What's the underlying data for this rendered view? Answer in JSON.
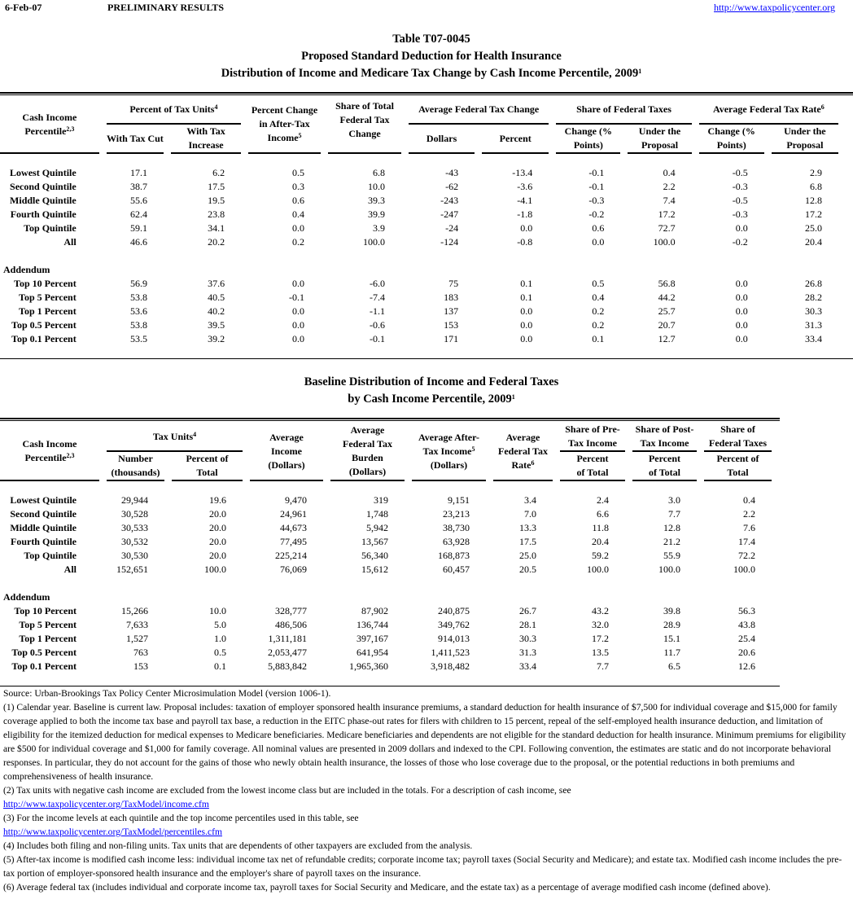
{
  "header": {
    "date": "6-Feb-07",
    "status": "PRELIMINARY RESULTS",
    "url": "http://www.taxpolicycenter.org"
  },
  "title": {
    "line1": "Table T07-0045",
    "line2": "Proposed Standard Deduction for Health Insurance",
    "line3": "Distribution of Income and Medicare Tax Change by Cash Income Percentile, 2009",
    "line3_sup": "1"
  },
  "table1": {
    "headers": {
      "label": "Cash Income Percentile",
      "label_sup": "2,3",
      "tax_units": "Percent of Tax Units",
      "tax_units_sup": "4",
      "with_cut": "With Tax Cut",
      "with_increase": "With Tax Increase",
      "pct_change": "Percent Change in After-Tax Income",
      "pct_change_sup": "5",
      "share_change": "Share of Total Federal Tax Change",
      "avg_change": "Average Federal Tax Change",
      "dollars": "Dollars",
      "percent": "Percent",
      "share_taxes": "Share of Federal Taxes",
      "change_pts": "Change (% Points)",
      "under_proposal": "Under the Proposal",
      "avg_rate": "Average Federal Tax Rate",
      "avg_rate_sup": "6",
      "change_pts2": "Change (% Points)",
      "under_proposal2": "Under the Proposal"
    },
    "rows": [
      [
        "Lowest Quintile",
        "17.1",
        "6.2",
        "0.5",
        "6.8",
        "-43",
        "-13.4",
        "-0.1",
        "0.4",
        "-0.5",
        "2.9"
      ],
      [
        "Second Quintile",
        "38.7",
        "17.5",
        "0.3",
        "10.0",
        "-62",
        "-3.6",
        "-0.1",
        "2.2",
        "-0.3",
        "6.8"
      ],
      [
        "Middle Quintile",
        "55.6",
        "19.5",
        "0.6",
        "39.3",
        "-243",
        "-4.1",
        "-0.3",
        "7.4",
        "-0.5",
        "12.8"
      ],
      [
        "Fourth Quintile",
        "62.4",
        "23.8",
        "0.4",
        "39.9",
        "-247",
        "-1.8",
        "-0.2",
        "17.2",
        "-0.3",
        "17.2"
      ],
      [
        "Top Quintile",
        "59.1",
        "34.1",
        "0.0",
        "3.9",
        "-24",
        "0.0",
        "0.6",
        "72.7",
        "0.0",
        "25.0"
      ],
      [
        "All",
        "46.6",
        "20.2",
        "0.2",
        "100.0",
        "-124",
        "-0.8",
        "0.0",
        "100.0",
        "-0.2",
        "20.4"
      ]
    ],
    "addendum_label": "Addendum",
    "addendum": [
      [
        "Top 10 Percent",
        "56.9",
        "37.6",
        "0.0",
        "-6.0",
        "75",
        "0.1",
        "0.5",
        "56.8",
        "0.0",
        "26.8"
      ],
      [
        "Top 5 Percent",
        "53.8",
        "40.5",
        "-0.1",
        "-7.4",
        "183",
        "0.1",
        "0.4",
        "44.2",
        "0.0",
        "28.2"
      ],
      [
        "Top 1 Percent",
        "53.6",
        "40.2",
        "0.0",
        "-1.1",
        "137",
        "0.0",
        "0.2",
        "25.7",
        "0.0",
        "30.3"
      ],
      [
        "Top 0.5 Percent",
        "53.8",
        "39.5",
        "0.0",
        "-0.6",
        "153",
        "0.0",
        "0.2",
        "20.7",
        "0.0",
        "31.3"
      ],
      [
        "Top 0.1 Percent",
        "53.5",
        "39.2",
        "0.0",
        "-0.1",
        "171",
        "0.0",
        "0.1",
        "12.7",
        "0.0",
        "33.4"
      ]
    ]
  },
  "title2": {
    "line1": "Baseline Distribution of Income and Federal Taxes",
    "line2": "by Cash Income Percentile, 2009",
    "line2_sup": "1"
  },
  "table2": {
    "headers": {
      "label": "Cash Income Percentile",
      "label_sup": "2,3",
      "tax_units": "Tax Units",
      "tax_units_sup": "4",
      "number": "Number (thousands)",
      "pct_total": "Percent of Total",
      "avg_income": "Average Income (Dollars)",
      "burden": "Average Federal Tax Burden (Dollars)",
      "after_tax": "Average After-Tax Income",
      "after_tax_sup": "5",
      "after_tax_unit": "(Dollars)",
      "rate": "Average Federal Tax Rate",
      "rate_sup": "6",
      "share_pre": "Share of Pre-Tax Income",
      "share_post": "Share of Post-Tax Income",
      "share_fed": "Share of Federal Taxes",
      "pct_of_total": "Percent of Total"
    },
    "rows": [
      [
        "Lowest Quintile",
        "29,944",
        "19.6",
        "9,470",
        "319",
        "9,151",
        "3.4",
        "2.4",
        "3.0",
        "0.4"
      ],
      [
        "Second Quintile",
        "30,528",
        "20.0",
        "24,961",
        "1,748",
        "23,213",
        "7.0",
        "6.6",
        "7.7",
        "2.2"
      ],
      [
        "Middle Quintile",
        "30,533",
        "20.0",
        "44,673",
        "5,942",
        "38,730",
        "13.3",
        "11.8",
        "12.8",
        "7.6"
      ],
      [
        "Fourth Quintile",
        "30,532",
        "20.0",
        "77,495",
        "13,567",
        "63,928",
        "17.5",
        "20.4",
        "21.2",
        "17.4"
      ],
      [
        "Top Quintile",
        "30,530",
        "20.0",
        "225,214",
        "56,340",
        "168,873",
        "25.0",
        "59.2",
        "55.9",
        "72.2"
      ],
      [
        "All",
        "152,651",
        "100.0",
        "76,069",
        "15,612",
        "60,457",
        "20.5",
        "100.0",
        "100.0",
        "100.0"
      ]
    ],
    "addendum_label": "Addendum",
    "addendum": [
      [
        "Top 10 Percent",
        "15,266",
        "10.0",
        "328,777",
        "87,902",
        "240,875",
        "26.7",
        "43.2",
        "39.8",
        "56.3"
      ],
      [
        "Top 5 Percent",
        "7,633",
        "5.0",
        "486,506",
        "136,744",
        "349,762",
        "28.1",
        "32.0",
        "28.9",
        "43.8"
      ],
      [
        "Top 1 Percent",
        "1,527",
        "1.0",
        "1,311,181",
        "397,167",
        "914,013",
        "30.3",
        "17.2",
        "15.1",
        "25.4"
      ],
      [
        "Top 0.5 Percent",
        "763",
        "0.5",
        "2,053,477",
        "641,954",
        "1,411,523",
        "31.3",
        "13.5",
        "11.7",
        "20.6"
      ],
      [
        "Top 0.1 Percent",
        "153",
        "0.1",
        "5,883,842",
        "1,965,360",
        "3,918,482",
        "33.4",
        "7.7",
        "6.5",
        "12.6"
      ]
    ]
  },
  "notes": {
    "source": "Source: Urban-Brookings Tax Policy Center Microsimulation Model (version 1006-1).",
    "n1": "(1) Calendar year. Baseline is current law. Proposal includes: taxation of employer sponsored health insurance premiums, a standard deduction for health insurance of $7,500 for individual coverage and $15,000 for family coverage applied to both the income tax base and payroll tax base, a reduction in the EITC phase-out rates for filers with children to 15 percent, repeal of the self-employed health insurance deduction, and limitation of eligibility for the itemized deduction for medical expenses to Medicare beneficiaries. Medicare beneficiaries and dependents are not eligible for the  standard deduction for health insurance. Minimum premiums for eligibility are $500 for individual coverage and $1,000 for family coverage. All nominal values are presented in 2009 dollars and indexed to the CPI. Following convention, the estimates are static and do not incorporate behavioral responses. In particular, they do not account for the gains of those who newly obtain health insurance, the losses of those who lose coverage due to the proposal, or the potential reductions in both premiums and comprehensiveness of health insurance.",
    "n2": "(2) Tax units with negative cash income are excluded from the lowest income class but are included in the totals. For a description of cash income, see",
    "n2_link": "http://www.taxpolicycenter.org/TaxModel/income.cfm",
    "n3": "(3) For the income levels at each quintile and the top income percentiles used in this table, see",
    "n3_link": "http://www.taxpolicycenter.org/TaxModel/percentiles.cfm",
    "n4": "(4) Includes both filing and non-filing units.  Tax units that are dependents of other taxpayers are excluded from the analysis.",
    "n5": "(5) After-tax income is modified cash income less: individual income tax net of refundable credits; corporate income tax; payroll taxes (Social Security and Medicare); and estate tax. Modified cash income includes the pre-tax portion of employer-sponsored health insurance and the employer's share of payroll taxes on the insurance.",
    "n6": "(6) Average federal tax (includes individual and corporate income tax, payroll taxes for Social Security and Medicare, and the estate tax) as a percentage of average modified cash income (defined above)."
  }
}
